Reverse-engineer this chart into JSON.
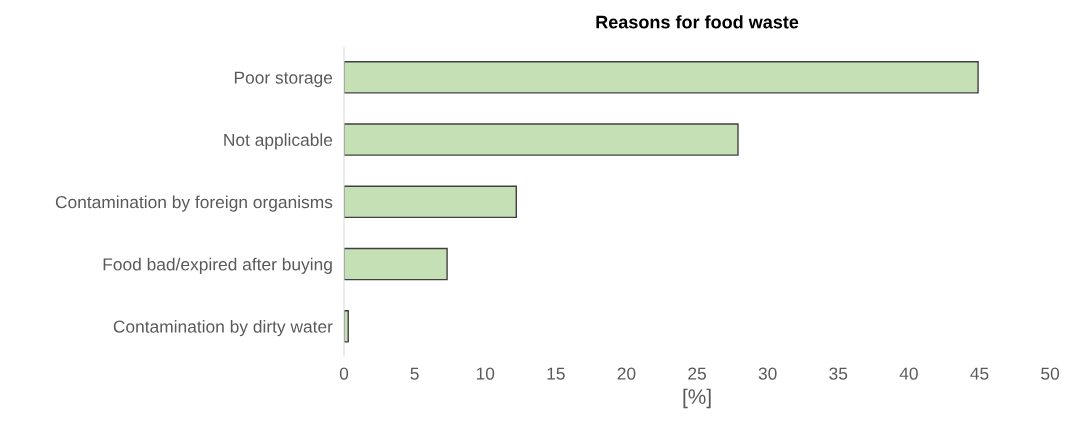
{
  "chart_data": {
    "type": "bar",
    "orientation": "horizontal",
    "title": "Reasons for food waste",
    "xlabel": "[%]",
    "categories": [
      "Poor storage",
      "Not applicable",
      "Contamination by foreign organisms",
      "Food bad/expired after buying",
      "Contamination by dirty water"
    ],
    "values": [
      44.9,
      27.9,
      12.2,
      7.3,
      0.3
    ],
    "color": "#c5e0b4",
    "xlim": [
      0,
      50
    ],
    "xticks": [
      0,
      5,
      10,
      15,
      20,
      25,
      30,
      35,
      40,
      45,
      50
    ],
    "grid": false,
    "legend": false
  }
}
